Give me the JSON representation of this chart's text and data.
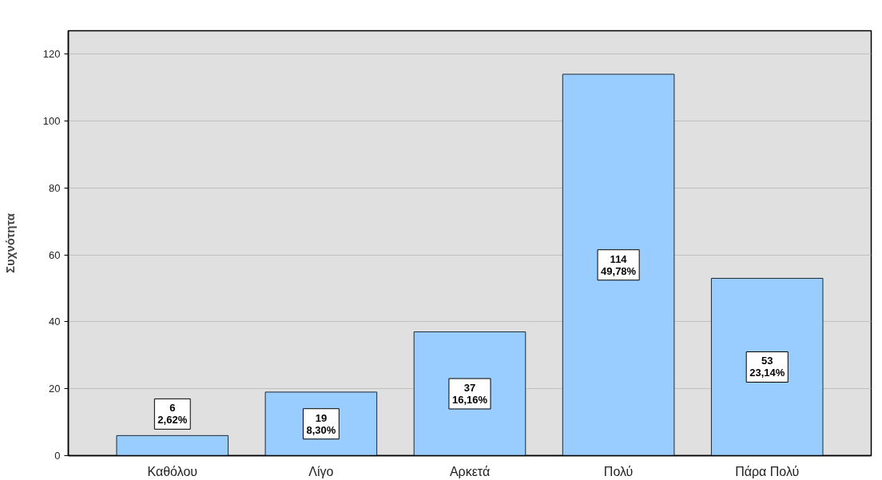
{
  "chart_data": {
    "type": "bar",
    "ylabel": "Συχνότητα",
    "categories": [
      "Καθόλου",
      "Λίγο",
      "Αρκετά",
      "Πολύ",
      "Πάρα Πολύ"
    ],
    "values": [
      6,
      19,
      37,
      114,
      53
    ],
    "value_labels": [
      "6\n2,62%",
      "19\n8,30%",
      "37\n16,16%",
      "114\n49,78%",
      "53\n23,14%"
    ],
    "color": "#99ccff",
    "ylim": [
      0,
      127
    ],
    "yticks": [
      0,
      20,
      40,
      60,
      80,
      100,
      120
    ],
    "grid": "y"
  }
}
